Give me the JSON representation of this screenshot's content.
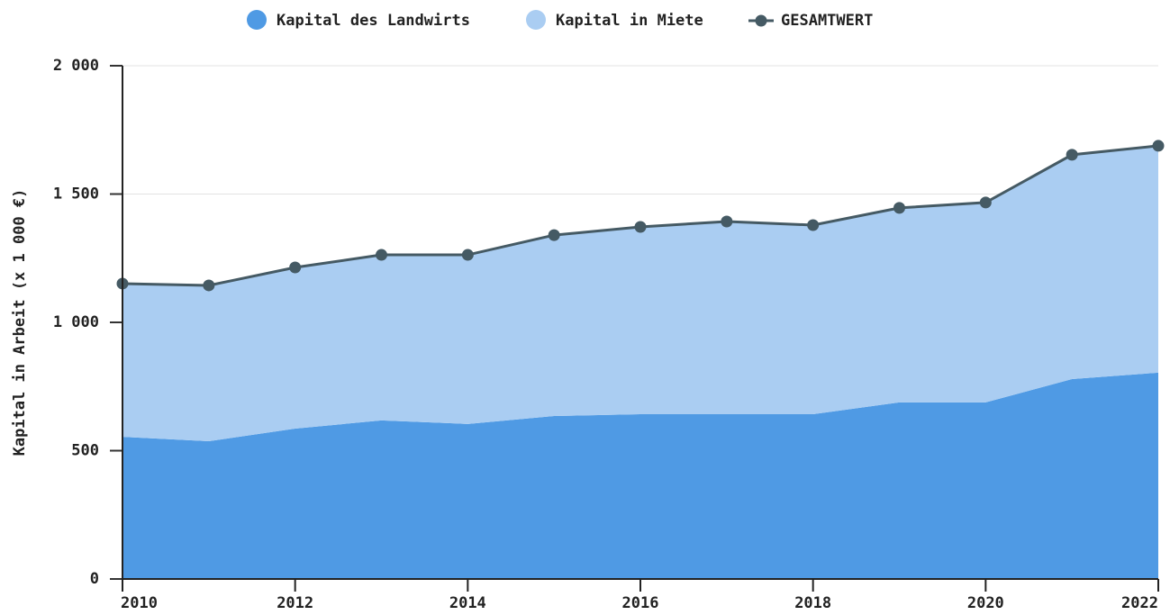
{
  "chart_data": {
    "type": "stacked-area-line",
    "y_label": "Kapital in Arbeit (x 1 000 €)",
    "x": [
      2010,
      2011,
      2012,
      2013,
      2014,
      2015,
      2016,
      2017,
      2018,
      2019,
      2020,
      2021,
      2022
    ],
    "xlim": [
      2010,
      2022
    ],
    "xticks": [
      2010,
      2012,
      2014,
      2016,
      2018,
      2020,
      2022
    ],
    "ylim": [
      0,
      2000
    ],
    "yticks": [
      0,
      {
        "value": 500,
        "label": "500"
      },
      {
        "value": 1000,
        "label": "1 000"
      },
      {
        "value": 1500,
        "label": "1 500"
      },
      {
        "value": 2000,
        "label": "2 000"
      }
    ],
    "grid": true,
    "legend": "top",
    "series": [
      {
        "name": "Kapital des Landwirts",
        "color": "#4f9ae4",
        "kind": "area",
        "values": [
          554,
          537,
          586,
          618,
          604,
          635,
          642,
          642,
          642,
          688,
          688,
          779,
          804
        ]
      },
      {
        "name": "Kapital in Miete",
        "color": "#aacdf2",
        "kind": "area",
        "values": [
          597,
          607,
          628,
          645,
          659,
          705,
          730,
          751,
          737,
          758,
          779,
          874,
          884
        ]
      },
      {
        "name": "GESAMTWERT",
        "color": "#455a64",
        "kind": "line",
        "values": [
          1151,
          1144,
          1214,
          1263,
          1263,
          1340,
          1372,
          1393,
          1379,
          1446,
          1467,
          1653,
          1688
        ]
      }
    ]
  }
}
